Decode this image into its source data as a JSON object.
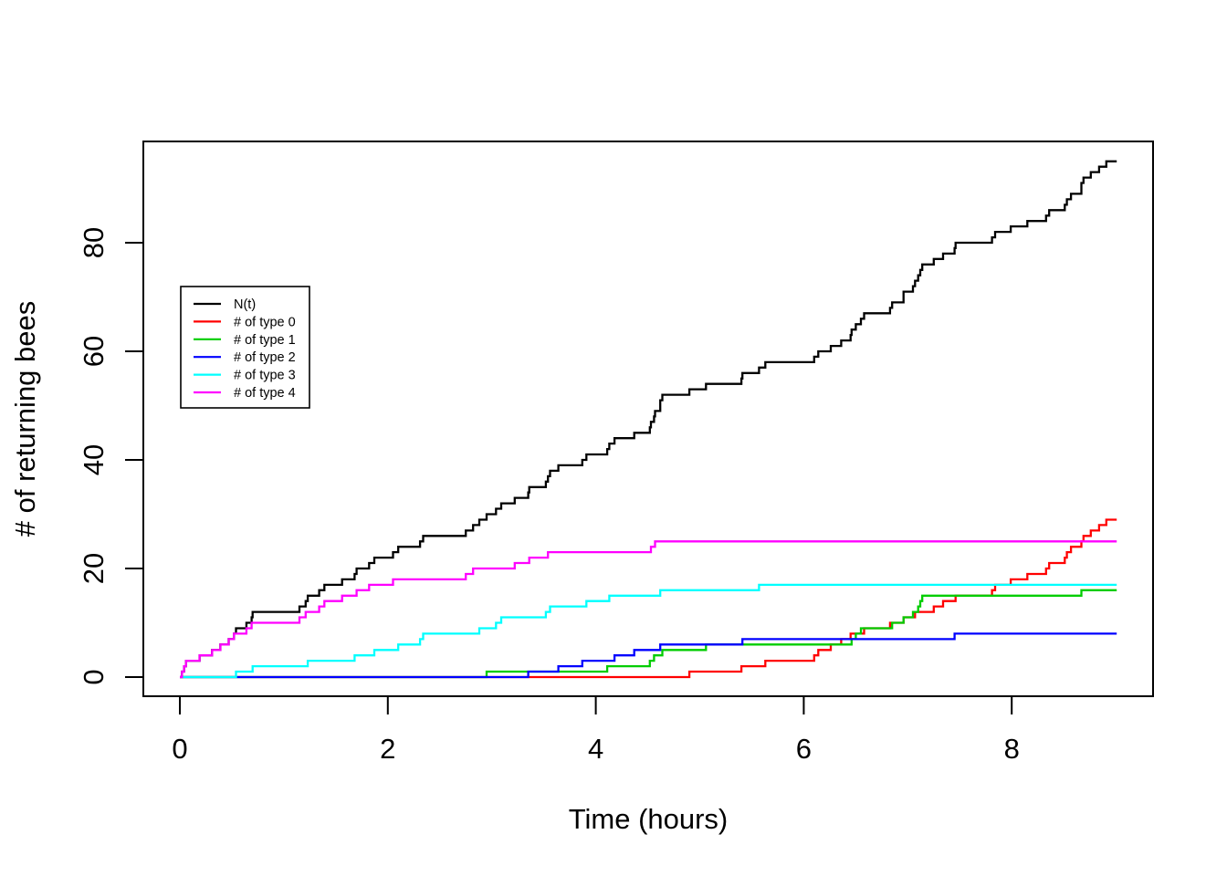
{
  "chart_data": {
    "type": "line",
    "subtype": "step-cumulative-counts",
    "title": "",
    "xlabel": "Time (hours)",
    "ylabel": "# of returning bees",
    "x_ticks": [
      0,
      2,
      4,
      6,
      8
    ],
    "y_ticks": [
      0,
      20,
      40,
      60,
      80
    ],
    "xlim": [
      -0.35,
      9.36
    ],
    "ylim": [
      -3.5,
      98.7
    ],
    "t_start": 0,
    "t_end": 9.01,
    "grid": "off",
    "legend_position": "inside-upper-left",
    "series": [
      {
        "name": "N(t)",
        "color": "#000000",
        "role": "total-of-all-types",
        "final": 95
      },
      {
        "name": "# of type 0",
        "color": "#FF0000",
        "final": 29,
        "event_times": [
          4.9,
          5.4,
          5.63,
          6.1,
          6.14,
          6.26,
          6.36,
          6.45,
          6.58,
          6.83,
          6.96,
          7.07,
          7.25,
          7.34,
          7.46,
          7.81,
          7.84,
          7.99,
          8.15,
          8.33,
          8.36,
          8.51,
          8.53,
          8.57,
          8.67,
          8.69,
          8.76,
          8.84,
          8.91
        ]
      },
      {
        "name": "# of type 1",
        "color": "#00CD00",
        "final": 16,
        "event_times": [
          2.95,
          4.11,
          4.52,
          4.56,
          4.64,
          5.06,
          6.46,
          6.5,
          6.55,
          6.85,
          6.96,
          7.05,
          7.1,
          7.12,
          7.14,
          8.67
        ]
      },
      {
        "name": "# of type 2",
        "color": "#0000FF",
        "final": 8,
        "event_times": [
          3.35,
          3.64,
          3.87,
          4.18,
          4.37,
          4.62,
          5.41,
          7.45
        ]
      },
      {
        "name": "# of type 3",
        "color": "#00FFFF",
        "final": 17,
        "event_times": [
          0.54,
          0.7,
          1.23,
          1.68,
          1.87,
          2.1,
          2.31,
          2.34,
          2.88,
          3.04,
          3.09,
          3.52,
          3.56,
          3.91,
          4.13,
          4.62,
          5.57
        ]
      },
      {
        "name": "# of type 4",
        "color": "#FF00FF",
        "final": 25,
        "event_times": [
          0.02,
          0.04,
          0.06,
          0.19,
          0.31,
          0.39,
          0.47,
          0.52,
          0.64,
          0.69,
          1.15,
          1.21,
          1.34,
          1.39,
          1.56,
          1.7,
          1.82,
          2.05,
          2.75,
          2.82,
          3.22,
          3.36,
          3.54,
          4.53,
          4.57
        ]
      }
    ]
  }
}
